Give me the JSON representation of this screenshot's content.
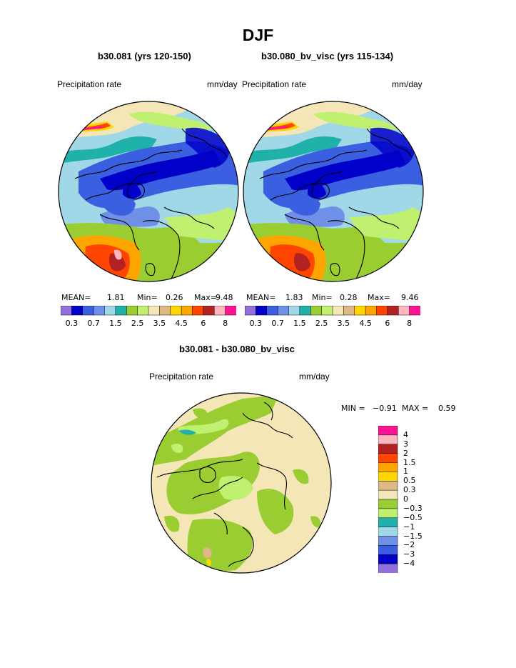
{
  "title": "DJF",
  "panels": [
    {
      "case": "b30.081 (yrs 120-150)",
      "variable": "Precipitation rate",
      "units": "mm/day",
      "mean_label": "MEAN=",
      "mean": "1.81",
      "min_label": "Min=",
      "min": "0.26",
      "max_label": "Max=",
      "max": "9.48"
    },
    {
      "case": "b30.080_bv_visc (yrs 115-134)",
      "variable": "Precipitation rate",
      "units": "mm/day",
      "mean_label": "MEAN=",
      "mean": "1.83",
      "min_label": "Min=",
      "min": "0.28",
      "max_label": "Max=",
      "max": "9.46"
    }
  ],
  "diff": {
    "title": "b30.081 - b30.080_bv_visc",
    "variable": "Precipitation rate",
    "units": "mm/day",
    "min_label": "MIN =",
    "min": "−0.91",
    "max_label": "MAX =",
    "max": "0.59"
  },
  "chart_data": [
    {
      "type": "heatmap",
      "projection": "north polar stereographic",
      "title": "b30.081 (yrs 120-150)",
      "variable": "Precipitation rate",
      "units": "mm/day",
      "mean": 1.81,
      "min": 0.26,
      "max": 9.48,
      "contour_levels": [
        0.3,
        0.5,
        0.7,
        1,
        1.5,
        2,
        2.5,
        3,
        3.5,
        4,
        4.5,
        5,
        6,
        7,
        8
      ],
      "colorbar_tick_labels": [
        "0.3",
        "0.7",
        "1.5",
        "2.5",
        "3.5",
        "4.5",
        "6",
        "8"
      ]
    },
    {
      "type": "heatmap",
      "projection": "north polar stereographic",
      "title": "b30.080_bv_visc (yrs 115-134)",
      "variable": "Precipitation rate",
      "units": "mm/day",
      "mean": 1.83,
      "min": 0.28,
      "max": 9.46,
      "contour_levels": [
        0.3,
        0.5,
        0.7,
        1,
        1.5,
        2,
        2.5,
        3,
        3.5,
        4,
        4.5,
        5,
        6,
        7,
        8
      ],
      "colorbar_tick_labels": [
        "0.3",
        "0.7",
        "1.5",
        "2.5",
        "3.5",
        "4.5",
        "6",
        "8"
      ]
    },
    {
      "type": "heatmap",
      "projection": "north polar stereographic",
      "title": "b30.081 - b30.080_bv_visc",
      "variable": "Precipitation rate",
      "units": "mm/day",
      "min": -0.91,
      "max": 0.59,
      "contour_levels": [
        -4,
        -3,
        -2,
        -1.5,
        -1,
        -0.5,
        -0.3,
        0,
        0.3,
        0.5,
        1,
        1.5,
        2,
        3,
        4
      ],
      "colorbar_tick_labels": [
        "4",
        "3",
        "2",
        "1.5",
        "1",
        "0.5",
        "0.3",
        "0",
        "−0.3",
        "−0.5",
        "−1",
        "−1.5",
        "−2",
        "−3",
        "−4"
      ]
    }
  ],
  "colors": {
    "abs_palette": [
      "#9370db",
      "#0000c8",
      "#3a5fe0",
      "#7090e8",
      "#a0d8e8",
      "#20b2aa",
      "#9acd32",
      "#c0f070",
      "#f5e6b8",
      "#deb887",
      "#ffd700",
      "#ffa500",
      "#ff4500",
      "#b22222",
      "#ffb6c1",
      "#ff1493"
    ],
    "diff_palette_top_to_bottom": [
      "#ff1493",
      "#ffb6c1",
      "#b22222",
      "#ff4500",
      "#ffa500",
      "#ffd700",
      "#deb887",
      "#f5e6b8",
      "#9acd32",
      "#c0f070",
      "#20b2aa",
      "#a0d8e8",
      "#7090e8",
      "#3a5fe0",
      "#0000c8",
      "#9370db"
    ]
  }
}
